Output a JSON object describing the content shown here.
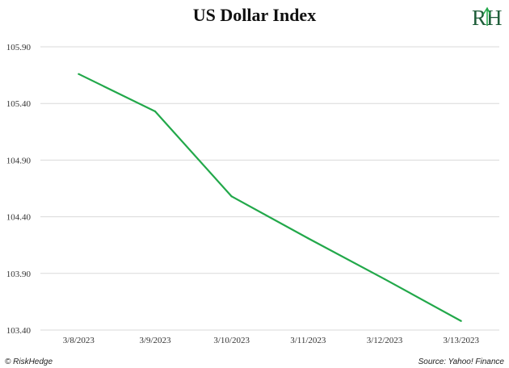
{
  "chart_data": {
    "type": "line",
    "title": "US Dollar Index",
    "xlabel": "",
    "ylabel": "",
    "categories": [
      "3/8/2023",
      "3/9/2023",
      "3/10/2023",
      "3/11/2023",
      "3/12/2023",
      "3/13/2023"
    ],
    "series": [
      {
        "values": [
          105.66,
          105.33,
          104.58,
          104.21,
          103.85,
          103.48
        ],
        "color": "#22a84a"
      }
    ],
    "yticks": [
      "105.90",
      "105.40",
      "104.90",
      "104.40",
      "103.90",
      "103.40"
    ],
    "ylim": [
      103.4,
      105.9
    ],
    "grid": true,
    "legend": "none"
  },
  "logo": {
    "text": "RH",
    "color": "#1f5e3a",
    "accent": "#22a84a"
  },
  "footer": {
    "left": "© RiskHedge",
    "right": "Source: Yahoo! Finance"
  }
}
